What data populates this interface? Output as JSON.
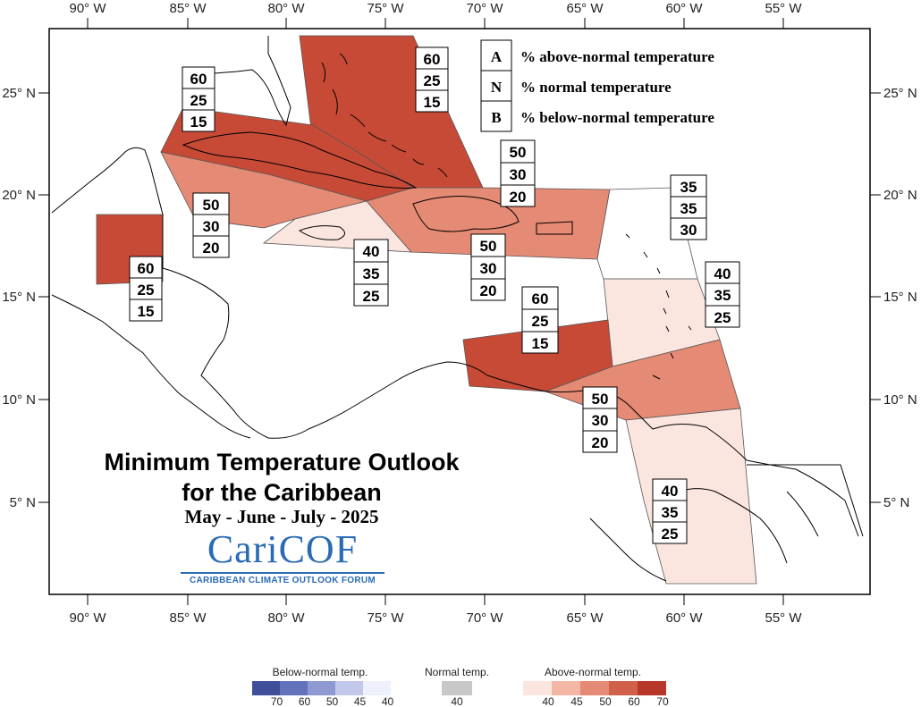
{
  "title": {
    "line1": "Minimum Temperature Outlook",
    "line2": "for the Caribbean",
    "period": "May - June - July - 2025"
  },
  "logo": {
    "word": "CariCOF",
    "subtitle": "CARIBBEAN CLIMATE OUTLOOK FORUM",
    "color": "#2a6bb5"
  },
  "key": [
    {
      "letter": "A",
      "text": "% above-normal temperature"
    },
    {
      "letter": "N",
      "text": "% normal temperature"
    },
    {
      "letter": "B",
      "text": "% below-normal temperature"
    }
  ],
  "axes": {
    "lon_top": [
      "90° W",
      "85° W",
      "80° W",
      "75° W",
      "70° W",
      "65° W",
      "60° W",
      "55° W"
    ],
    "lon_bottom": [
      "90° W",
      "85° W",
      "80° W",
      "75° W",
      "70° W",
      "65° W",
      "60° W",
      "55° W"
    ],
    "lat_left": [
      "25° N",
      "20° N",
      "15° N",
      "10° N",
      "5° N"
    ],
    "lat_right": [
      "25° N",
      "20° N",
      "15° N",
      "10° N",
      "5° N"
    ]
  },
  "regions": [
    {
      "id": "bahamas",
      "category": "above",
      "level": 60,
      "color": "#c74a37"
    },
    {
      "id": "cuba",
      "category": "above",
      "level": 60,
      "color": "#c74a37"
    },
    {
      "id": "belize",
      "category": "above",
      "level": 60,
      "color": "#c74a37"
    },
    {
      "id": "south-caribbean",
      "category": "above",
      "level": 60,
      "color": "#c74a37"
    },
    {
      "id": "cayman-band",
      "category": "above",
      "level": 50,
      "color": "#e58a74"
    },
    {
      "id": "hispaniola-pr",
      "category": "above",
      "level": 50,
      "color": "#e58a74"
    },
    {
      "id": "trinidad-band",
      "category": "above",
      "level": 50,
      "color": "#e58a74"
    },
    {
      "id": "jamaica",
      "category": "above",
      "level": 40,
      "color": "#fbe6df"
    },
    {
      "id": "windward",
      "category": "above",
      "level": 40,
      "color": "#fbe6df"
    },
    {
      "id": "guianas",
      "category": "above",
      "level": 40,
      "color": "#fbe6df"
    },
    {
      "id": "leeward",
      "category": "normal",
      "level": 35,
      "color": "#ffffff"
    }
  ],
  "probability_tables": [
    {
      "id": "cuba",
      "values": [
        "60",
        "25",
        "15"
      ]
    },
    {
      "id": "bahamas",
      "values": [
        "60",
        "25",
        "15"
      ]
    },
    {
      "id": "cayman-band",
      "values": [
        "50",
        "30",
        "20"
      ]
    },
    {
      "id": "belize",
      "values": [
        "60",
        "25",
        "15"
      ]
    },
    {
      "id": "jamaica",
      "values": [
        "40",
        "35",
        "25"
      ]
    },
    {
      "id": "hispaniola-pr",
      "values": [
        "50",
        "30",
        "20"
      ]
    },
    {
      "id": "hispaniola-south",
      "values": [
        "50",
        "30",
        "20"
      ]
    },
    {
      "id": "leeward",
      "values": [
        "35",
        "35",
        "30"
      ]
    },
    {
      "id": "windward",
      "values": [
        "40",
        "35",
        "25"
      ]
    },
    {
      "id": "south-caribbean",
      "values": [
        "60",
        "25",
        "15"
      ]
    },
    {
      "id": "trinidad-band",
      "values": [
        "50",
        "30",
        "20"
      ]
    },
    {
      "id": "guianas",
      "values": [
        "40",
        "35",
        "25"
      ]
    }
  ],
  "legend": {
    "below": {
      "title": "Below-normal temp.",
      "ticks": [
        "70",
        "60",
        "50",
        "45",
        "40"
      ],
      "colors": [
        "#3f4f99",
        "#6272bb",
        "#8e99d2",
        "#c2c8ea",
        "#eef0fb"
      ]
    },
    "normal": {
      "title": "Normal temp.",
      "ticks": [
        "40"
      ],
      "colors": [
        "#c8c8c8"
      ]
    },
    "above": {
      "title": "Above-normal temp.",
      "ticks": [
        "40",
        "45",
        "50",
        "60",
        "70"
      ],
      "colors": [
        "#fbe6df",
        "#f5b7a5",
        "#e58a74",
        "#d0604a",
        "#b7382a"
      ]
    }
  }
}
